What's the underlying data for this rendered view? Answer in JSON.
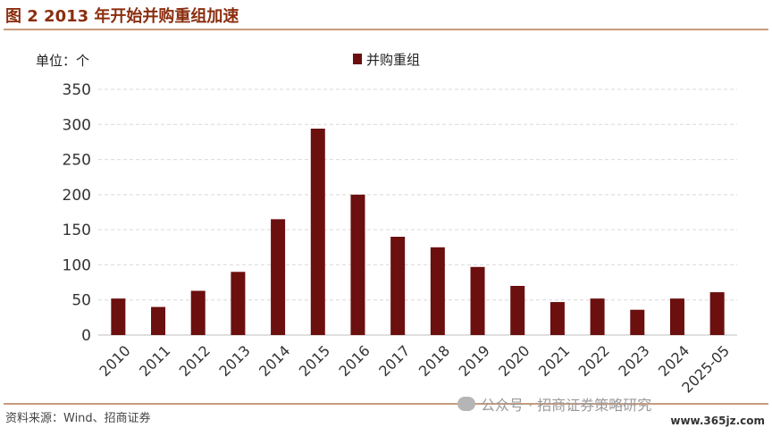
{
  "figure_title": "图 2 2013 年开始并购重组加速",
  "source_note": "资料来源：Wind、招商证券",
  "watermark": "公众号 · 招商证券策略研究",
  "site_mark": "www.365jz.com",
  "colors": {
    "bar": "#6B0F0F",
    "title": "#8B2E0F",
    "rule": "#C89A7E",
    "grid": "#D9D9D9"
  },
  "chart_data": {
    "type": "bar",
    "unit_label": "单位：个",
    "categories": [
      "2010",
      "2011",
      "2012",
      "2013",
      "2014",
      "2015",
      "2016",
      "2017",
      "2018",
      "2019",
      "2020",
      "2021",
      "2022",
      "2023",
      "2024",
      "2025-05"
    ],
    "series": [
      {
        "name": "并购重组",
        "values": [
          52,
          40,
          63,
          90,
          165,
          294,
          200,
          140,
          125,
          97,
          70,
          47,
          52,
          36,
          52,
          61
        ]
      }
    ],
    "yticks": [
      0,
      50,
      100,
      150,
      200,
      250,
      300,
      350
    ],
    "ylim": [
      0,
      350
    ],
    "grid": true,
    "legend_position": "top-center"
  }
}
